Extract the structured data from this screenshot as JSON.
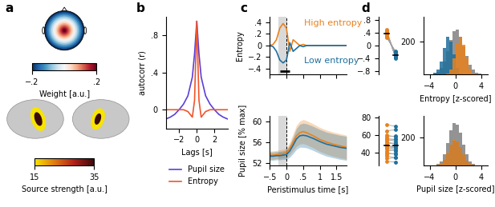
{
  "chart_data": [
    {
      "panel": "a",
      "type": "heatmap",
      "colorbar": {
        "label": "Weight [a.u.]",
        "range": [
          -0.2,
          0.2
        ],
        "ticks": [
          {
            "value": -0.2,
            "label": "−.2"
          },
          {
            "value": 0.2,
            "label": ".2"
          }
        ]
      }
    },
    {
      "type": "heatmap",
      "colorbar": {
        "label": "Source strength [a.u.]",
        "range": [
          15,
          35
        ],
        "ticks": [
          15,
          35
        ]
      }
    },
    {
      "panel": "b",
      "type": "line",
      "x_label": "Lags [s]",
      "y_label": "autocorr (r)",
      "x": [
        -3.5,
        -3,
        -2.5,
        -2,
        -1.5,
        -1,
        -0.5,
        -0.25,
        0,
        0.25,
        0.5,
        1,
        1.5,
        2,
        2.5,
        3,
        3.5
      ],
      "series": [
        {
          "name": "Pupil size",
          "color": "#5b3fd8",
          "values": [
            -0.1,
            -0.08,
            -0.05,
            0.0,
            0.06,
            0.15,
            0.35,
            0.6,
            0.95,
            0.6,
            0.35,
            0.15,
            0.06,
            0.0,
            -0.05,
            -0.08,
            -0.1
          ]
        },
        {
          "name": "Entropy",
          "color": "#f0552a",
          "values": [
            0.0,
            0.0,
            0.0,
            0.0,
            0.0,
            -0.02,
            -0.08,
            0.1,
            0.95,
            0.1,
            -0.08,
            -0.02,
            0.0,
            0.0,
            0.0,
            0.0,
            0.0
          ]
        }
      ],
      "xlim": [
        -3.5,
        3.5
      ],
      "xticks": [
        {
          "value": -2,
          "label": "−2"
        },
        0,
        2
      ],
      "ylim": [
        -0.2,
        1.0
      ],
      "yticks": [
        0,
        {
          "value": 0.4,
          "label": ".4"
        },
        {
          "value": 0.8,
          "label": ".8"
        }
      ],
      "legend": "upper center"
    },
    {
      "panel": "c",
      "type": "line",
      "y_label": "Entropy",
      "tick_labels": "y",
      "x": [
        -0.5,
        -0.4,
        -0.3,
        -0.2,
        -0.1,
        0,
        0.1,
        0.2,
        0.3,
        0.4,
        0.5,
        0.6,
        0.8,
        1.0,
        1.2,
        1.4,
        1.6,
        1.8
      ],
      "series": [
        {
          "name": "High entropy",
          "color": "#e8821e",
          "values": [
            0.0,
            0.02,
            0.1,
            0.3,
            0.38,
            0.3,
            -0.1,
            0.1,
            0.05,
            0.0,
            0.02,
            0.0,
            0.0,
            0.0,
            0.0,
            0.0,
            0.0,
            0.0
          ]
        },
        {
          "name": "Low entropy",
          "color": "#1f6f9c",
          "values": [
            0.0,
            -0.02,
            -0.1,
            -0.25,
            -0.3,
            -0.25,
            0.05,
            -0.1,
            -0.05,
            0.0,
            -0.02,
            0.0,
            0.0,
            0.0,
            0.0,
            0.0,
            0.0,
            0.0
          ]
        }
      ],
      "shaded": [
        -0.25,
        0
      ],
      "onset": 0,
      "significance": [
        -0.2,
        0.1
      ],
      "xlim": [
        -0.5,
        1.8
      ],
      "xticks": [
        -0.5,
        0,
        0.5,
        1,
        1.5
      ],
      "ylim": [
        -0.5,
        0.5
      ],
      "yticks": [
        {
          "value": -0.4,
          "label": "−.4"
        },
        {
          "value": -0.2,
          "label": "−.2"
        },
        0,
        {
          "value": 0.2,
          "label": ".2"
        },
        {
          "value": 0.4,
          "label": ".4"
        }
      ]
    },
    {
      "type": "line",
      "x_label": "Peristimulus time [s]",
      "y_label": "Pupil size [% max]",
      "x": [
        -0.5,
        -0.4,
        -0.3,
        -0.2,
        -0.1,
        0,
        0.1,
        0.2,
        0.3,
        0.4,
        0.5,
        0.6,
        0.8,
        1.0,
        1.2,
        1.4,
        1.6,
        1.8
      ],
      "series": [
        {
          "name": "High entropy",
          "color": "#e8821e",
          "values": [
            53.5,
            53.5,
            53.6,
            53.7,
            53.8,
            54.0,
            54.8,
            56.0,
            57.2,
            57.8,
            58.0,
            57.8,
            57.2,
            56.5,
            56.0,
            55.6,
            55.3,
            55.0
          ],
          "error": [
            0.8,
            0.8,
            0.8,
            0.8,
            0.8,
            0.9,
            1.2,
            1.6,
            2.0,
            2.2,
            2.3,
            2.3,
            2.3,
            2.3,
            2.3,
            2.3,
            2.3,
            2.3
          ]
        },
        {
          "name": "Low entropy",
          "color": "#1f6f9c",
          "values": [
            53.3,
            53.3,
            53.4,
            53.4,
            53.5,
            53.6,
            54.3,
            55.4,
            56.6,
            57.2,
            57.3,
            57.2,
            56.7,
            56.1,
            55.6,
            55.3,
            55.0,
            54.8
          ],
          "error": [
            0.8,
            0.8,
            0.8,
            0.8,
            0.8,
            0.9,
            1.2,
            1.6,
            2.0,
            2.2,
            2.3,
            2.3,
            2.3,
            2.3,
            2.3,
            2.3,
            2.3,
            2.3
          ]
        }
      ],
      "shaded": [
        -0.25,
        0
      ],
      "onset": 0,
      "xlim": [
        -0.5,
        1.8
      ],
      "xticks": [
        {
          "value": -0.5,
          "label": "−.5"
        },
        0,
        {
          "value": 0.5,
          "label": ".5"
        },
        1,
        1.5
      ],
      "ylim": [
        51.5,
        61
      ],
      "yticks": [
        52,
        56,
        60
      ]
    },
    {
      "panel": "d",
      "type": "paired",
      "tick_labels": "y",
      "series": [
        {
          "name": "High entropy",
          "color": "#e8821e",
          "values": [
            0.45,
            0.4,
            0.35,
            0.5,
            0.3,
            0.42,
            0.38,
            0.28,
            0.33,
            0.46,
            0.36,
            0.4,
            0.25,
            0.31,
            0.44,
            0.37,
            0.29,
            0.41,
            0.34,
            0.39
          ]
        },
        {
          "name": "Low entropy",
          "color": "#1f6f9c",
          "values": [
            -0.3,
            -0.35,
            -0.28,
            -0.4,
            -0.22,
            -0.33,
            -0.3,
            -0.2,
            -0.27,
            -0.38,
            -0.29,
            -0.34,
            -0.18,
            -0.25,
            -0.36,
            -0.31,
            -0.21,
            -0.35,
            -0.26,
            -0.32
          ]
        }
      ],
      "ylim": [
        -0.9,
        0.9
      ],
      "yticks": [
        {
          "value": -0.8,
          "label": "−.8"
        },
        {
          "value": -0.4,
          "label": "−.4"
        },
        0,
        {
          "value": 0.4,
          "label": ".4"
        },
        {
          "value": 0.8,
          "label": ".8"
        }
      ]
    },
    {
      "type": "paired",
      "tick_labels": "y",
      "series": [
        {
          "name": "High entropy",
          "color": "#e8821e",
          "values": [
            72,
            65,
            60,
            58,
            56,
            55,
            54,
            52,
            50,
            48,
            47,
            46,
            45,
            44,
            42,
            40,
            38,
            36,
            33,
            30
          ]
        },
        {
          "name": "Low entropy",
          "color": "#1f6f9c",
          "values": [
            70,
            66,
            58,
            59,
            55,
            53,
            55,
            50,
            51,
            46,
            48,
            44,
            46,
            42,
            43,
            38,
            39,
            34,
            34,
            29
          ]
        }
      ],
      "ylim": [
        25,
        82
      ],
      "yticks": [
        40,
        60,
        80
      ]
    },
    {
      "type": "histogram",
      "x_label": "Entropy [z-scored]",
      "bins": [
        -5,
        -4.5,
        -4,
        -3.5,
        -3,
        -2.5,
        -2,
        -1.5,
        -1,
        -0.5,
        0,
        0.5,
        1,
        1.5,
        2,
        2.5,
        3,
        3.5,
        4,
        4.5,
        5
      ],
      "series": [
        {
          "color": "#808080",
          "values": [
            0,
            1,
            3,
            8,
            18,
            40,
            80,
            140,
            210,
            260,
            270,
            230,
            170,
            110,
            60,
            28,
            12,
            5,
            2,
            0
          ]
        },
        {
          "color": "#1f6f9c",
          "values": [
            0,
            1,
            3,
            10,
            30,
            80,
            160,
            230,
            200,
            120,
            40,
            8,
            1,
            0,
            0,
            0,
            0,
            0,
            0,
            0
          ]
        },
        {
          "color": "#e8821e",
          "values": [
            0,
            0,
            0,
            0,
            0,
            0,
            1,
            5,
            30,
            100,
            190,
            230,
            180,
            100,
            35,
            8,
            1,
            0,
            0,
            0
          ]
        }
      ],
      "xlim": [
        -5,
        5
      ],
      "xticks": [
        {
          "value": -4,
          "label": "−4"
        },
        0,
        4
      ],
      "ylim": [
        0,
        350
      ],
      "yticks": [
        200
      ]
    },
    {
      "type": "histogram",
      "x_label": "Pupil size [z-scored]",
      "bins": [
        -5,
        -4.5,
        -4,
        -3.5,
        -3,
        -2.5,
        -2,
        -1.5,
        -1,
        -0.5,
        0,
        0.5,
        1,
        1.5,
        2,
        2.5,
        3,
        3.5,
        4,
        4.5,
        5
      ],
      "series": [
        {
          "color": "#808080",
          "values": [
            0,
            0,
            1,
            3,
            10,
            30,
            80,
            160,
            250,
            300,
            290,
            230,
            150,
            80,
            30,
            10,
            3,
            1,
            0,
            0
          ]
        },
        {
          "color": "#1f6f9c",
          "values": [
            0,
            0,
            0,
            1,
            4,
            14,
            40,
            88,
            148,
            178,
            172,
            128,
            80,
            36,
            12,
            4,
            1,
            0,
            0,
            0
          ]
        },
        {
          "color": "#e8821e",
          "values": [
            0,
            0,
            0,
            1,
            4,
            15,
            40,
            90,
            150,
            180,
            170,
            130,
            80,
            35,
            12,
            4,
            1,
            0,
            0,
            0
          ]
        }
      ],
      "xlim": [
        -5,
        5
      ],
      "xticks": [
        {
          "value": -4,
          "label": "−4"
        },
        0,
        4
      ],
      "ylim": [
        0,
        350
      ],
      "yticks": [
        200
      ]
    }
  ]
}
